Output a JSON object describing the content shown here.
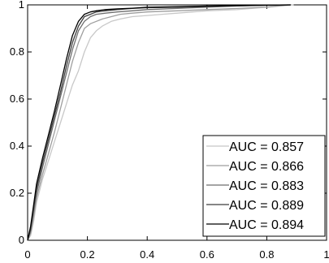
{
  "chart_data": {
    "type": "line",
    "title": "",
    "xlabel": "",
    "ylabel": "",
    "xlim": [
      0,
      1
    ],
    "ylim": [
      0,
      1
    ],
    "xticks": [
      {
        "value": 0,
        "label": "0"
      },
      {
        "value": 0.2,
        "label": "0.2"
      },
      {
        "value": 0.4,
        "label": "0.4"
      },
      {
        "value": 0.6,
        "label": "0.6"
      },
      {
        "value": 0.8,
        "label": "0.8"
      },
      {
        "value": 1,
        "label": "1"
      }
    ],
    "yticks": [
      {
        "value": 0,
        "label": "0"
      },
      {
        "value": 0.2,
        "label": "0.2"
      },
      {
        "value": 0.4,
        "label": "0.4"
      },
      {
        "value": 0.6,
        "label": "0.6"
      },
      {
        "value": 0.8,
        "label": "0.8"
      },
      {
        "value": 1,
        "label": "1"
      }
    ],
    "grid": false,
    "legend_position": "bottom-right",
    "series": [
      {
        "name": "AUC = 0.857",
        "color": "#c8c8c8",
        "x": [
          0,
          0.01,
          0.02,
          0.03,
          0.05,
          0.07,
          0.09,
          0.11,
          0.13,
          0.15,
          0.17,
          0.19,
          0.21,
          0.23,
          0.25,
          0.28,
          0.31,
          0.35,
          0.4,
          0.45,
          0.5,
          0.6,
          0.7,
          0.8,
          0.85,
          0.89
        ],
        "y": [
          0,
          0.02,
          0.08,
          0.16,
          0.26,
          0.34,
          0.42,
          0.5,
          0.58,
          0.66,
          0.72,
          0.8,
          0.86,
          0.89,
          0.91,
          0.93,
          0.94,
          0.95,
          0.955,
          0.96,
          0.965,
          0.975,
          0.98,
          0.99,
          0.995,
          1
        ]
      },
      {
        "name": "AUC = 0.866",
        "color": "#9e9e9e",
        "x": [
          0,
          0.01,
          0.02,
          0.03,
          0.05,
          0.07,
          0.09,
          0.11,
          0.13,
          0.15,
          0.17,
          0.19,
          0.21,
          0.23,
          0.25,
          0.28,
          0.31,
          0.35,
          0.4,
          0.5,
          0.6,
          0.7,
          0.8,
          0.87
        ],
        "y": [
          0,
          0.03,
          0.1,
          0.18,
          0.28,
          0.37,
          0.46,
          0.56,
          0.66,
          0.76,
          0.84,
          0.9,
          0.92,
          0.93,
          0.94,
          0.95,
          0.96,
          0.965,
          0.97,
          0.975,
          0.98,
          0.985,
          0.99,
          1
        ]
      },
      {
        "name": "AUC = 0.883",
        "color": "#6e6e6e",
        "x": [
          0,
          0.01,
          0.02,
          0.03,
          0.05,
          0.07,
          0.09,
          0.11,
          0.13,
          0.15,
          0.17,
          0.19,
          0.21,
          0.23,
          0.26,
          0.3,
          0.35,
          0.4,
          0.5,
          0.6,
          0.7,
          0.8,
          0.88
        ],
        "y": [
          0,
          0.04,
          0.12,
          0.2,
          0.31,
          0.41,
          0.51,
          0.61,
          0.71,
          0.81,
          0.89,
          0.93,
          0.95,
          0.96,
          0.965,
          0.97,
          0.975,
          0.98,
          0.985,
          0.99,
          0.995,
          0.998,
          1
        ]
      },
      {
        "name": "AUC = 0.889",
        "color": "#3e3e3e",
        "x": [
          0,
          0.01,
          0.02,
          0.03,
          0.05,
          0.07,
          0.09,
          0.11,
          0.13,
          0.15,
          0.17,
          0.19,
          0.21,
          0.23,
          0.26,
          0.3,
          0.35,
          0.4,
          0.5,
          0.6,
          0.7,
          0.8,
          0.88
        ],
        "y": [
          0,
          0.05,
          0.14,
          0.22,
          0.33,
          0.43,
          0.53,
          0.63,
          0.74,
          0.84,
          0.91,
          0.95,
          0.96,
          0.97,
          0.975,
          0.98,
          0.985,
          0.988,
          0.99,
          0.993,
          0.996,
          0.999,
          1
        ]
      },
      {
        "name": "AUC = 0.894",
        "color": "#000000",
        "x": [
          0,
          0.01,
          0.02,
          0.03,
          0.05,
          0.07,
          0.09,
          0.11,
          0.13,
          0.15,
          0.17,
          0.19,
          0.21,
          0.23,
          0.26,
          0.3,
          0.35,
          0.4,
          0.5,
          0.6,
          0.7,
          0.8,
          0.88
        ],
        "y": [
          0,
          0.06,
          0.15,
          0.24,
          0.35,
          0.45,
          0.55,
          0.66,
          0.77,
          0.87,
          0.93,
          0.96,
          0.97,
          0.975,
          0.98,
          0.983,
          0.986,
          0.99,
          0.992,
          0.995,
          0.997,
          0.999,
          1
        ]
      }
    ]
  }
}
